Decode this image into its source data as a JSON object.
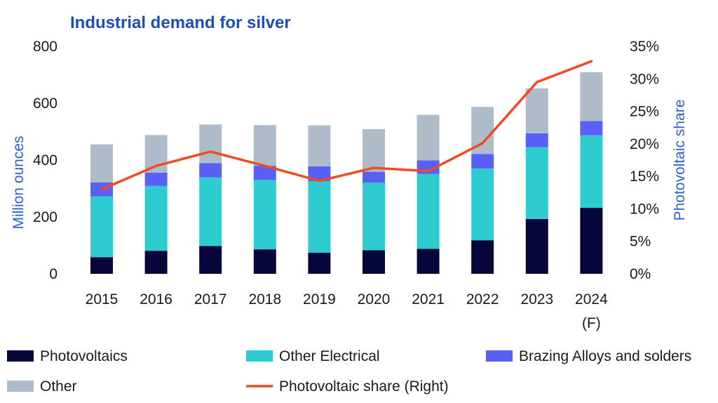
{
  "chart_data": {
    "type": "bar",
    "stacked": true,
    "title": "Industrial demand for silver",
    "ylabel": "Million ounces",
    "y2label": "Photovoltaic share",
    "ylim": [
      0,
      800
    ],
    "y2lim": [
      0,
      35
    ],
    "yticks": [
      "0",
      "200",
      "400",
      "600",
      "800"
    ],
    "y2ticks": [
      "0%",
      "5%",
      "10%",
      "15%",
      "20%",
      "25%",
      "30%",
      "35%"
    ],
    "categories": [
      "2015",
      "2016",
      "2017",
      "2018",
      "2019",
      "2020",
      "2021",
      "2022",
      "2023",
      "2024"
    ],
    "category_sublabels": [
      "",
      "",
      "",
      "",
      "",
      "",
      "",
      "",
      "",
      "(F)"
    ],
    "series": [
      {
        "name": "Photovoltaics",
        "color": "#06063a",
        "values": [
          58,
          81,
          98,
          86,
          74,
          83,
          88,
          118,
          193,
          232
        ]
      },
      {
        "name": "Other Electrical",
        "color": "#2ecbd1",
        "values": [
          214,
          228,
          241,
          244,
          252,
          238,
          263,
          252,
          252,
          255
        ]
      },
      {
        "name": "Brazing Alloys and solders",
        "color": "#5960f5",
        "values": [
          49,
          47,
          50,
          50,
          52,
          38,
          48,
          51,
          49,
          50
        ]
      },
      {
        "name": "Other",
        "color": "#aebcc9",
        "values": [
          134,
          132,
          136,
          143,
          144,
          150,
          160,
          166,
          158,
          172
        ]
      }
    ],
    "line_series": {
      "name": "Photovoltaic share (Right)",
      "color": "#f24b22",
      "axis": "right",
      "values": [
        13.0,
        16.6,
        18.8,
        16.6,
        14.3,
        16.3,
        15.8,
        20.1,
        29.5,
        32.7
      ]
    },
    "legend_position": "bottom",
    "grid": false,
    "colors": {
      "title": "#1f4fb5",
      "axis_title": "#2a63c7"
    }
  }
}
